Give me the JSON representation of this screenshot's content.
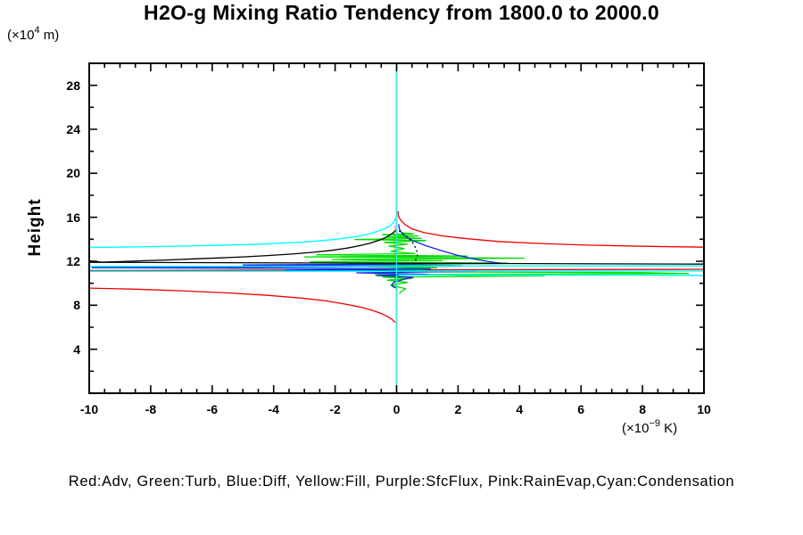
{
  "title": "H2O-g Mixing Ratio Tendency from 1800.0 to 2000.0",
  "legend": "Red:Adv, Green:Turb, Blue:Diff, Yellow:Fill, Purple:SfcFlux, Pink:RainEvap,Cyan:Condensation",
  "y_unit": {
    "prefix": "(×10",
    "sup": "4",
    "suffix": " m)"
  },
  "x_unit": {
    "prefix": "(×10",
    "sup": "−9",
    "suffix": " K)"
  },
  "colors": {
    "background": "#ffffff",
    "axis": "#000000"
  },
  "chart_data": {
    "type": "line",
    "title": "H2O-g Mixing Ratio Tendency from 1800.0 to 2000.0",
    "xlabel": "(×10⁻⁹ K)",
    "ylabel": "Height",
    "ylabel_unit": "(×10⁴ m)",
    "xlim": [
      -10,
      10
    ],
    "ylim": [
      0,
      30
    ],
    "grid": false,
    "legend_position": "bottom",
    "x_major_ticks": [
      -10,
      -8,
      -6,
      -4,
      -2,
      0,
      2,
      4,
      6,
      8,
      10
    ],
    "x_tick_labels": [
      "-10",
      "-8",
      "-6",
      "-4",
      "-2",
      "0",
      "2",
      "4",
      "6",
      "8",
      "10"
    ],
    "x_minor_step": 0.5,
    "y_major_ticks": [
      4,
      8,
      12,
      16,
      20,
      24,
      28
    ],
    "y_tick_labels": [
      "4",
      "8",
      "12",
      "16",
      "20",
      "24",
      "28"
    ],
    "y_minor_step": 2,
    "series": [
      {
        "name": "Fill",
        "color_name": "yellow",
        "color": "#e6dc32",
        "width": 1.3,
        "segments": [
          {
            "pts": [
              [
                0,
                30
              ],
              [
                0,
                0
              ]
            ]
          }
        ]
      },
      {
        "name": "SfcFlux",
        "color_name": "purple",
        "color": "#a000c8",
        "width": 1.3,
        "segments": [
          {
            "pts": [
              [
                0,
                30
              ],
              [
                0,
                0
              ]
            ]
          }
        ]
      },
      {
        "name": "RainEvap",
        "color_name": "pink",
        "color": "#ffb4b4",
        "width": 1.6,
        "segments": [
          {
            "pts": [
              [
                -0.06,
                15.25
              ],
              [
                -0.06,
                9.8
              ]
            ]
          }
        ]
      },
      {
        "name": "Adv",
        "color_name": "red",
        "color": "#f00000",
        "width": 1.3,
        "segments": [
          {
            "pts": [
              [
                0.05,
                16.55
              ],
              [
                0.06,
                16.1
              ],
              [
                0.13,
                15.75
              ],
              [
                0.27,
                15.35
              ],
              [
                0.5,
                14.95
              ],
              [
                0.9,
                14.6
              ],
              [
                1.5,
                14.3
              ],
              [
                2.3,
                14.05
              ],
              [
                3.3,
                13.8
              ],
              [
                4.6,
                13.62
              ],
              [
                6.2,
                13.47
              ],
              [
                8,
                13.36
              ],
              [
                10,
                13.28
              ]
            ]
          },
          {
            "pts": [
              [
                -10,
                11.16
              ],
              [
                10,
                11.27
              ]
            ]
          },
          {
            "pts": [
              [
                -10,
                9.56
              ],
              [
                -8.5,
                9.46
              ],
              [
                -7,
                9.32
              ],
              [
                -5.5,
                9.12
              ],
              [
                -4.2,
                8.9
              ],
              [
                -3.1,
                8.65
              ],
              [
                -2.3,
                8.4
              ],
              [
                -1.7,
                8.12
              ],
              [
                -1.2,
                7.85
              ],
              [
                -0.8,
                7.55
              ],
              [
                -0.5,
                7.25
              ],
              [
                -0.3,
                6.98
              ],
              [
                -0.15,
                6.72
              ],
              [
                -0.07,
                6.5
              ],
              [
                -0.05,
                6.42
              ]
            ]
          }
        ]
      },
      {
        "name": "Turb",
        "color_name": "green",
        "color": "#00dc00",
        "width": 1.3,
        "segments": [
          {
            "pts": [
              [
                0.15,
                14.6
              ],
              [
                0.55,
                14.5
              ],
              [
                -0.45,
                14.42
              ],
              [
                0.7,
                14.3
              ],
              [
                -0.35,
                14.2
              ],
              [
                0.8,
                14.08
              ],
              [
                -1.35,
                13.98
              ],
              [
                0.95,
                13.88
              ],
              [
                -0.4,
                13.72
              ],
              [
                0.35,
                13.55
              ],
              [
                -0.25,
                13.38
              ],
              [
                0.25,
                13.15
              ],
              [
                -0.18,
                12.9
              ],
              [
                0.6,
                12.7
              ],
              [
                -2.6,
                12.58
              ],
              [
                2.3,
                12.48
              ],
              [
                -3.0,
                12.4
              ],
              [
                4.15,
                12.28
              ],
              [
                -2.1,
                12.16
              ],
              [
                1.5,
                12.05
              ],
              [
                -2.8,
                11.94
              ],
              [
                3.6,
                11.84
              ],
              [
                -1.6,
                11.73
              ],
              [
                2.1,
                11.6
              ],
              [
                -0.9,
                11.5
              ],
              [
                1.3,
                11.4
              ],
              [
                -0.55,
                11.28
              ],
              [
                0.9,
                11.18
              ],
              [
                -0.35,
                11.05
              ],
              [
                8.0,
                10.96
              ],
              [
                9.5,
                10.88
              ],
              [
                -0.7,
                10.78
              ],
              [
                4.8,
                10.68
              ],
              [
                -0.45,
                10.56
              ],
              [
                0.5,
                10.44
              ],
              [
                -0.3,
                10.28
              ],
              [
                0.35,
                10.08
              ],
              [
                -0.2,
                9.82
              ],
              [
                0.3,
                9.5
              ],
              [
                0.12,
                9.2
              ],
              [
                0.1,
                9.02
              ]
            ]
          }
        ]
      },
      {
        "name": "Diff",
        "color_name": "blue",
        "color": "#1428e0",
        "width": 1.3,
        "segments": [
          {
            "pts": [
              [
                0.07,
                15.38
              ],
              [
                0.09,
                14.95
              ],
              [
                0.16,
                14.6
              ],
              [
                0.3,
                14.25
              ],
              [
                0.55,
                13.85
              ],
              [
                0.95,
                13.42
              ],
              [
                1.45,
                12.97
              ],
              [
                1.95,
                12.57
              ],
              [
                2.5,
                12.22
              ],
              [
                3.0,
                11.97
              ],
              [
                3.45,
                11.8
              ],
              [
                -5.0,
                11.66
              ],
              [
                2.2,
                11.55
              ],
              [
                -9.9,
                11.42
              ],
              [
                1.1,
                11.3
              ],
              [
                -3.6,
                11.2
              ],
              [
                2.6,
                11.08
              ],
              [
                -1.3,
                10.95
              ],
              [
                1.0,
                10.82
              ],
              [
                -0.65,
                10.7
              ],
              [
                0.55,
                10.56
              ],
              [
                0.3,
                10.4
              ],
              [
                -0.08,
                10.12
              ],
              [
                -0.16,
                9.85
              ],
              [
                -0.12,
                9.68
              ],
              [
                -0.02,
                9.58
              ],
              [
                0.0,
                9.45
              ]
            ]
          }
        ]
      },
      {
        "name": "unlabeled-black",
        "color_name": "black",
        "color": "#000000",
        "width": 1.3,
        "segments": [
          {
            "pts": [
              [
                -10,
                12.05
              ],
              [
                -9.6,
                11.92
              ],
              [
                -8.8,
                11.98
              ],
              [
                -8.2,
                12.05
              ],
              [
                -7.4,
                12.12
              ],
              [
                -6.6,
                12.22
              ],
              [
                -5.8,
                12.3
              ],
              [
                -5.0,
                12.4
              ],
              [
                -4.2,
                12.52
              ],
              [
                -3.4,
                12.66
              ],
              [
                -2.7,
                12.82
              ],
              [
                -2.1,
                13.0
              ],
              [
                -1.6,
                13.2
              ],
              [
                -1.2,
                13.42
              ],
              [
                -0.85,
                13.65
              ],
              [
                -0.6,
                13.88
              ],
              [
                -0.4,
                14.1
              ],
              [
                -0.25,
                14.32
              ],
              [
                -0.13,
                14.55
              ],
              [
                -0.05,
                14.75
              ]
            ]
          },
          {
            "pts": [
              [
                -0.05,
                14.75
              ],
              [
                0.03,
                14.87
              ],
              [
                0.12,
                14.68
              ],
              [
                0.25,
                14.4
              ],
              [
                0.4,
                14.05
              ],
              [
                0.55,
                13.6
              ],
              [
                0.65,
                13.05
              ],
              [
                0.68,
                12.5
              ],
              [
                0.6,
                12.0
              ],
              [
                0.55,
                11.78
              ]
            ],
            "dash": "2,3"
          },
          {
            "pts": [
              [
                -10,
                11.9
              ],
              [
                10,
                11.74
              ]
            ]
          }
        ]
      },
      {
        "name": "Condensation",
        "color_name": "cyan",
        "color": "#00ffff",
        "width": 1.4,
        "segments": [
          {
            "pts": [
              [
                0,
                30
              ],
              [
                0,
                0
              ]
            ]
          },
          {
            "pts": [
              [
                -0.02,
                15.95
              ],
              [
                -0.08,
                15.6
              ],
              [
                -0.2,
                15.22
              ],
              [
                -0.45,
                14.88
              ],
              [
                -0.8,
                14.55
              ],
              [
                -1.3,
                14.25
              ],
              [
                -2.0,
                13.98
              ],
              [
                -3.0,
                13.75
              ],
              [
                -4.5,
                13.55
              ],
              [
                -6.5,
                13.4
              ],
              [
                -8.3,
                13.31
              ],
              [
                -10,
                13.26
              ]
            ]
          },
          {
            "pts": [
              [
                -10,
                11.53
              ],
              [
                10,
                11.58
              ]
            ]
          },
          {
            "pts": [
              [
                -10,
                11.08
              ],
              [
                10,
                11.12
              ]
            ]
          },
          {
            "pts": [
              [
                0.05,
                10.76
              ],
              [
                8.3,
                10.73
              ],
              [
                10,
                10.7
              ]
            ]
          }
        ]
      }
    ]
  }
}
